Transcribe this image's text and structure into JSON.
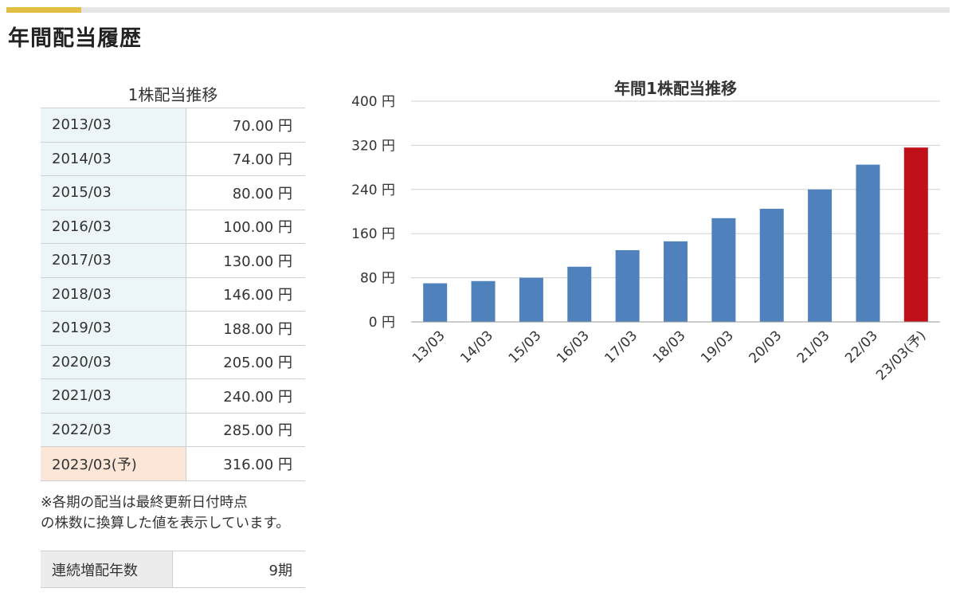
{
  "page": {
    "title": "年間配当履歴"
  },
  "table": {
    "caption": "1株配当推移",
    "rows": [
      {
        "period": "2013/03",
        "value": "70.00 円",
        "forecast": false
      },
      {
        "period": "2014/03",
        "value": "74.00 円",
        "forecast": false
      },
      {
        "period": "2015/03",
        "value": "80.00 円",
        "forecast": false
      },
      {
        "period": "2016/03",
        "value": "100.00 円",
        "forecast": false
      },
      {
        "period": "2017/03",
        "value": "130.00 円",
        "forecast": false
      },
      {
        "period": "2018/03",
        "value": "146.00 円",
        "forecast": false
      },
      {
        "period": "2019/03",
        "value": "188.00 円",
        "forecast": false
      },
      {
        "period": "2020/03",
        "value": "205.00 円",
        "forecast": false
      },
      {
        "period": "2021/03",
        "value": "240.00 円",
        "forecast": false
      },
      {
        "period": "2022/03",
        "value": "285.00 円",
        "forecast": false
      },
      {
        "period": "2023/03(予)",
        "value": "316.00 円",
        "forecast": true
      }
    ]
  },
  "note": {
    "line1": "※各期の配当は最終更新日付時点",
    "line2": "の株数に換算した値を表示しています。"
  },
  "streak": {
    "label": "連続増配年数",
    "value": "9期"
  },
  "colors": {
    "bar": "#4f81bd",
    "forecast_bar": "#c0101a",
    "accent": "#e2be45"
  },
  "chart_data": {
    "type": "bar",
    "title": "年間1株配当推移",
    "categories": [
      "13/03",
      "14/03",
      "15/03",
      "16/03",
      "17/03",
      "18/03",
      "19/03",
      "20/03",
      "21/03",
      "22/03",
      "23/03(予)"
    ],
    "values": [
      70,
      74,
      80,
      100,
      130,
      146,
      188,
      205,
      240,
      285,
      316
    ],
    "forecast_index": 10,
    "ylim": [
      0,
      400
    ],
    "yticks": [
      0,
      80,
      160,
      240,
      320,
      400
    ],
    "ytick_labels": [
      "0 円",
      "80 円",
      "160 円",
      "240 円",
      "320 円",
      "400 円"
    ],
    "grid": true,
    "legend": "none"
  }
}
